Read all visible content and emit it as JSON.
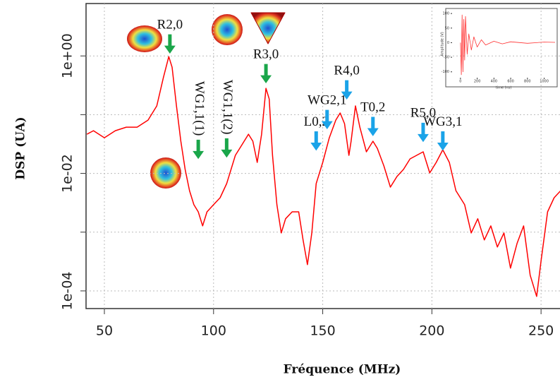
{
  "chart_data": [
    {
      "type": "line",
      "y_label": "DSP (UA)",
      "x_label": "Fréquence (MHz)",
      "color": "#ff0000",
      "log_y": true,
      "grid": true,
      "x": [
        42,
        45,
        50,
        55,
        60,
        65,
        70,
        74,
        77,
        79.5,
        81,
        83,
        85,
        87,
        89,
        91,
        93,
        95,
        97,
        100,
        103,
        106,
        108,
        110,
        113,
        116,
        118,
        120,
        122,
        124,
        125.5,
        127,
        129,
        131,
        133,
        136,
        139,
        141,
        143,
        145,
        147,
        150,
        153,
        156,
        158,
        160,
        162,
        163,
        165,
        167,
        170,
        173,
        175,
        178,
        181,
        184,
        187,
        190,
        193,
        196,
        199,
        202,
        205,
        208,
        211,
        215,
        218,
        221,
        224,
        227,
        230,
        233,
        236,
        239,
        242,
        245,
        248,
        250,
        253,
        256,
        259
      ],
      "values": [
        0.0465,
        0.0534,
        0.0405,
        0.0534,
        0.0613,
        0.0613,
        0.0809,
        0.141,
        0.425,
        0.973,
        0.643,
        0.141,
        0.0353,
        0.0117,
        0.00509,
        0.00293,
        0.00222,
        0.00128,
        0.00222,
        0.00293,
        0.00386,
        0.00671,
        0.0117,
        0.0203,
        0.0307,
        0.0465,
        0.0353,
        0.0154,
        0.0465,
        0.281,
        0.185,
        0.0203,
        0.00293,
        0.00097,
        0.00169,
        0.00222,
        0.00222,
        0.000736,
        0.00028,
        0.00097,
        0.00671,
        0.0154,
        0.0405,
        0.0809,
        0.107,
        0.0704,
        0.0203,
        0.0353,
        0.141,
        0.0613,
        0.0233,
        0.0353,
        0.0267,
        0.0134,
        0.00585,
        0.00885,
        0.0117,
        0.0177,
        0.0203,
        0.0233,
        0.0102,
        0.0154,
        0.0253,
        0.0154,
        0.00509,
        0.00293,
        0.00097,
        0.00169,
        0.000736,
        0.00128,
        0.000558,
        0.00097,
        0.000244,
        0.000641,
        0.00128,
        0.000185,
        8.05e-05,
        0.000321,
        0.00222,
        0.00386,
        0.00509
      ],
      "xlim": [
        41.6,
        259
      ],
      "ylim": [
        5e-05,
        7.8
      ],
      "xticks": [
        50,
        100,
        150,
        200,
        250
      ],
      "yticks": [
        {
          "value": 1,
          "label": "1e+00"
        },
        {
          "value": 0.01,
          "label": "1e-02"
        },
        {
          "value": 0.0001,
          "label": "1e-04"
        }
      ],
      "yminor_ticks": [
        0.1,
        0.001
      ],
      "annotations": [
        {
          "text": "R2,0",
          "x": 80,
          "y": 1.12,
          "color": "#1aa64a",
          "vertical": false
        },
        {
          "text": "WG1,1(1)",
          "x": 93,
          "y": 0.018,
          "color": "#1aa64a",
          "vertical": true
        },
        {
          "text": "WG1,1(2)",
          "x": 106,
          "y": 0.019,
          "color": "#1aa64a",
          "vertical": true
        },
        {
          "text": "R3,0",
          "x": 124,
          "y": 0.35,
          "color": "#1aa64a",
          "vertical": false
        },
        {
          "text": "L0,2",
          "x": 147,
          "y": 0.025,
          "color": "#1aa3e8",
          "vertical": false
        },
        {
          "text": "WG2,1",
          "x": 152,
          "y": 0.058,
          "color": "#1aa3e8",
          "vertical": false
        },
        {
          "text": "R4,0",
          "x": 161,
          "y": 0.185,
          "color": "#1aa3e8",
          "vertical": false
        },
        {
          "text": "T0,2",
          "x": 173,
          "y": 0.044,
          "color": "#1aa3e8",
          "vertical": false
        },
        {
          "text": "R5,0",
          "x": 196,
          "y": 0.035,
          "color": "#1aa3e8",
          "vertical": false
        },
        {
          "text": "WG3,1",
          "x": 205,
          "y": 0.025,
          "color": "#1aa3e8",
          "vertical": false
        }
      ]
    },
    {
      "type": "line",
      "x_label": "time (ns)",
      "y_label": "Amplitude (V)",
      "color": "#ff3030",
      "x": [
        0,
        10,
        20,
        30,
        40,
        50,
        60,
        80,
        100,
        130,
        160,
        200,
        250,
        300,
        400,
        500,
        600,
        800,
        1000,
        1130
      ],
      "values": [
        0,
        -110,
        95,
        -100,
        80,
        -60,
        90,
        -40,
        30,
        -25,
        20,
        -15,
        10,
        -8,
        5,
        -4,
        3,
        -2,
        2,
        1
      ],
      "xlim": [
        -100,
        1130
      ],
      "ylim": [
        -120,
        110
      ],
      "xticks": [
        0,
        200,
        400,
        600,
        800,
        1000
      ],
      "yticks": [
        -100,
        -50,
        0,
        50,
        100
      ]
    }
  ]
}
